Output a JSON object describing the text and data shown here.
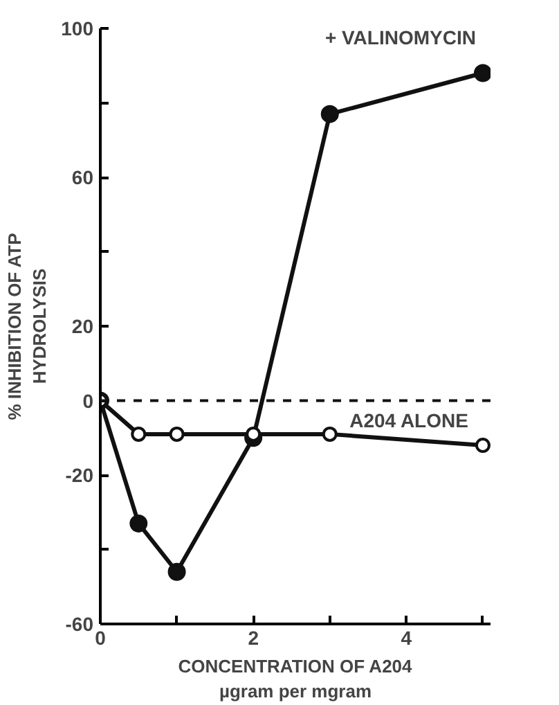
{
  "chart_data": {
    "type": "line",
    "xlabel": "CONCENTRATION OF A204\nµgram per mgram",
    "ylabel": "% INHIBITION OF ATP\nHYDROLYSIS",
    "series": [
      {
        "name": "+ VALINOMYCIN",
        "color": "#111111",
        "x": [
          0,
          0.5,
          1,
          2,
          3,
          5
        ],
        "values": [
          0,
          -33,
          -46,
          -10,
          77,
          88
        ]
      },
      {
        "name": "A204 ALONE",
        "color": "#111111",
        "x": [
          0,
          0.5,
          1,
          2,
          3,
          5
        ],
        "values": [
          0,
          -9,
          -9,
          -9,
          -9,
          -12
        ]
      }
    ],
    "xlim": [
      0,
      5.1
    ],
    "ylim": [
      -60,
      100
    ],
    "xticks": [
      0,
      {
        "value": 1,
        "label": null
      },
      2,
      {
        "value": 3,
        "label": null
      },
      4,
      {
        "value": 5,
        "label": null
      }
    ],
    "yticks": [
      -60,
      {
        "value": -40,
        "label": null
      },
      -20,
      0,
      20,
      {
        "value": 40,
        "label": null
      },
      60,
      {
        "value": 80,
        "label": null
      },
      100
    ],
    "ref_lines": [
      {
        "axis": "y",
        "value": 0,
        "line_style": "dashed"
      }
    ],
    "marker": "circle",
    "line_style": "solid",
    "grid": false
  }
}
